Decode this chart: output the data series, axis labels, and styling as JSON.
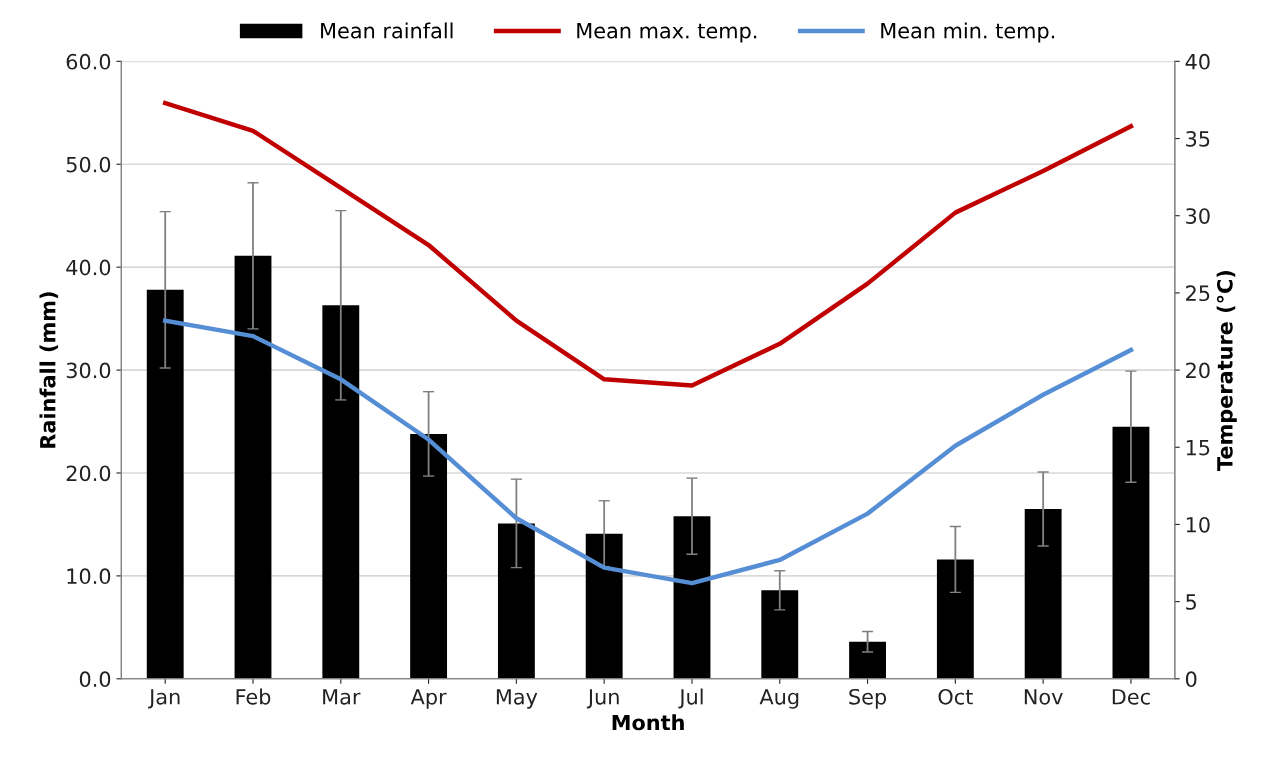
{
  "chart_data": {
    "type": "bar",
    "xlabel": "Month",
    "ylabel": "Rainfall (mm)",
    "y2label": "Temperature (°C)",
    "categories": [
      "Jan",
      "Feb",
      "Mar",
      "Apr",
      "May",
      "Jun",
      "Jul",
      "Aug",
      "Sep",
      "Oct",
      "Nov",
      "Dec"
    ],
    "series": [
      {
        "name": "Mean rainfall",
        "color": "#000000",
        "values": [
          37.8,
          41.1,
          36.3,
          23.8,
          15.1,
          14.1,
          15.8,
          8.6,
          3.6,
          11.6,
          16.5,
          24.5
        ],
        "errors": [
          7.6,
          7.1,
          9.2,
          4.1,
          4.3,
          3.2,
          3.7,
          1.9,
          1.0,
          3.2,
          3.6,
          5.4
        ]
      },
      {
        "name": "Mean max. temp.",
        "type": "line",
        "axis": "y2",
        "color": "#c00000",
        "values": [
          37.3,
          35.5,
          31.8,
          28.1,
          23.2,
          19.4,
          19.0,
          21.7,
          25.6,
          30.2,
          32.9,
          35.8
        ]
      },
      {
        "name": "Mean min. temp.",
        "type": "line",
        "axis": "y2",
        "color": "#558ed5",
        "values": [
          23.2,
          22.2,
          19.4,
          15.5,
          10.4,
          7.2,
          6.2,
          7.7,
          10.7,
          15.1,
          18.4,
          21.3
        ]
      }
    ],
    "ylim": [
      0,
      60
    ],
    "yticks": [
      {
        "value": 0,
        "label": "0.0"
      },
      {
        "value": 10,
        "label": "10.0"
      },
      {
        "value": 20,
        "label": "20.0"
      },
      {
        "value": 30,
        "label": "30.0"
      },
      {
        "value": 40,
        "label": "40.0"
      },
      {
        "value": 50,
        "label": "50.0"
      },
      {
        "value": 60,
        "label": "60.0"
      }
    ],
    "y2lim": [
      0,
      40
    ],
    "y2ticks": [
      0,
      5,
      10,
      15,
      20,
      25,
      30,
      35,
      40
    ],
    "grid": "y",
    "legend": "top",
    "marker": "none",
    "line_style": "solid"
  }
}
